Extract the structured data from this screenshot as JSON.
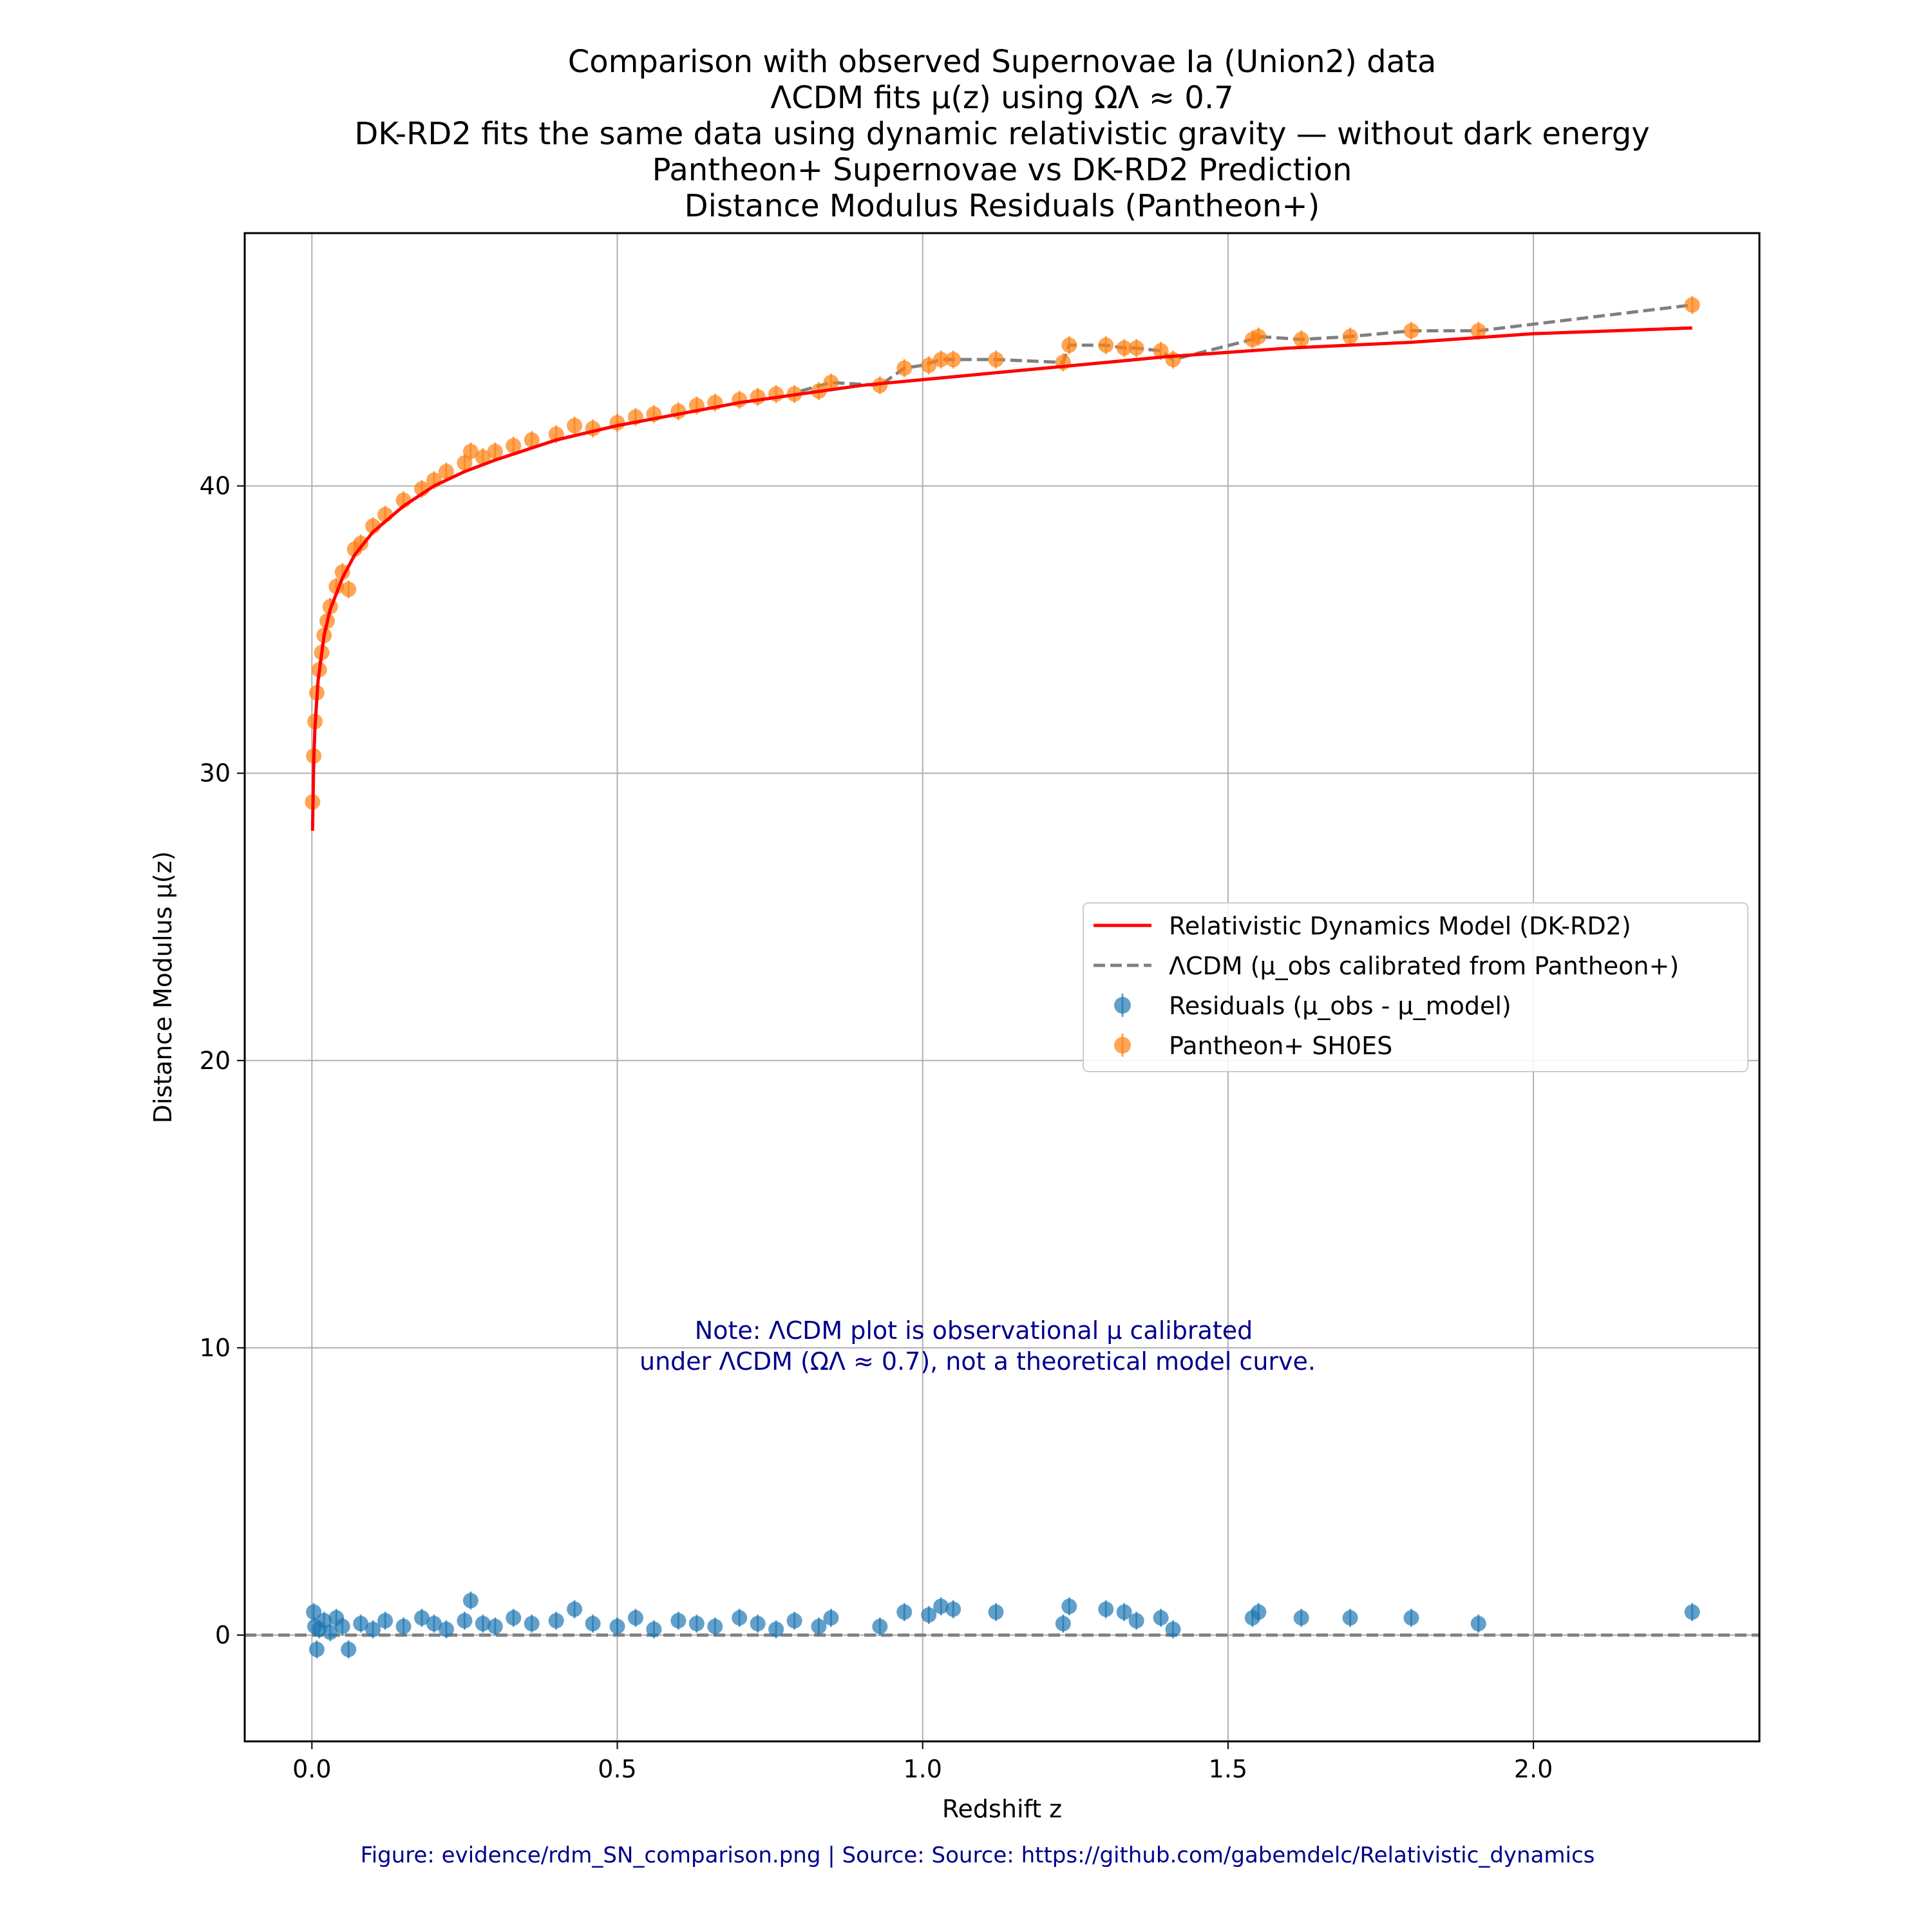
{
  "chart_data": {
    "type": "scatter",
    "title_lines": [
      "Comparison with observed Supernovae Ia (Union2) data",
      "ΛCDM fits μ(z) using ΩΛ ≈ 0.7",
      "DK-RD2 fits the same data using dynamic relativistic gravity — without dark energy",
      "Pantheon+ Supernovae vs DK-RD2 Prediction",
      "Distance Modulus Residuals (Pantheon+)"
    ],
    "xlabel": "Redshift z",
    "ylabel": "Distance Modulus μ(z)",
    "xlim": [
      -0.11,
      2.37
    ],
    "ylim": [
      -3.7,
      48.8
    ],
    "xticks": [
      0.0,
      0.5,
      1.0,
      1.5,
      2.0
    ],
    "xtick_labels": [
      "0.0",
      "0.5",
      "1.0",
      "1.5",
      "2.0"
    ],
    "yticks": [
      0,
      10,
      20,
      30,
      40
    ],
    "ytick_labels": [
      "0",
      "10",
      "20",
      "30",
      "40"
    ],
    "grid": true,
    "legend_position": "center-right",
    "legend": [
      "Relativistic Dynamics Model (DK-RD2)",
      "ΛCDM (μ_obs calibrated from Pantheon+)",
      "Residuals (μ_obs - μ_model)",
      "Pantheon+ SH0ES"
    ],
    "colors": {
      "model": "#ff0000",
      "lcdm": "#808080",
      "residuals": "#1f77b4",
      "pantheon": "#ff7f0e"
    },
    "series": [
      {
        "name": "Relativistic Dynamics Model (DK-RD2)",
        "kind": "line",
        "x": [
          0.001,
          0.003,
          0.005,
          0.01,
          0.02,
          0.03,
          0.05,
          0.07,
          0.1,
          0.15,
          0.2,
          0.25,
          0.3,
          0.4,
          0.5,
          0.6,
          0.7,
          0.8,
          0.9,
          1.0,
          1.2,
          1.4,
          1.6,
          1.8,
          2.0,
          2.26
        ],
        "y": [
          28.0,
          30.4,
          31.6,
          33.2,
          34.8,
          35.7,
          36.8,
          37.6,
          38.4,
          39.3,
          40.0,
          40.5,
          40.9,
          41.6,
          42.1,
          42.5,
          42.9,
          43.2,
          43.5,
          43.7,
          44.1,
          44.5,
          44.8,
          45.0,
          45.3,
          45.5
        ]
      },
      {
        "name": "ΛCDM (μ_obs calibrated from Pantheon+)",
        "kind": "dashed-line",
        "x": [
          0.8,
          0.85,
          0.93,
          0.97,
          1.0,
          1.03,
          1.05,
          1.12,
          1.23,
          1.24,
          1.3,
          1.33,
          1.35,
          1.39,
          1.41,
          1.54,
          1.55,
          1.62,
          1.7,
          1.8,
          1.91,
          2.26
        ],
        "y": [
          43.3,
          43.6,
          43.5,
          44.1,
          44.2,
          44.4,
          44.4,
          44.4,
          44.3,
          44.9,
          44.9,
          44.8,
          44.8,
          44.7,
          44.4,
          45.1,
          45.2,
          45.1,
          45.2,
          45.4,
          45.4,
          46.3
        ]
      },
      {
        "name": "Residuals (μ_obs - μ_model)",
        "kind": "scatter-errorbar",
        "x": [
          0.003,
          0.005,
          0.008,
          0.012,
          0.02,
          0.03,
          0.04,
          0.05,
          0.06,
          0.08,
          0.1,
          0.12,
          0.15,
          0.18,
          0.2,
          0.22,
          0.25,
          0.26,
          0.28,
          0.3,
          0.33,
          0.36,
          0.4,
          0.43,
          0.46,
          0.5,
          0.53,
          0.56,
          0.6,
          0.63,
          0.66,
          0.7,
          0.73,
          0.76,
          0.79,
          0.83,
          0.85,
          0.93,
          0.97,
          1.01,
          1.03,
          1.05,
          1.12,
          1.23,
          1.24,
          1.3,
          1.33,
          1.35,
          1.39,
          1.41,
          1.54,
          1.55,
          1.62,
          1.7,
          1.8,
          1.91,
          2.26
        ],
        "y": [
          0.8,
          0.3,
          -0.5,
          0.2,
          0.5,
          0.1,
          0.6,
          0.3,
          -0.5,
          0.4,
          0.2,
          0.5,
          0.3,
          0.6,
          0.4,
          0.2,
          0.5,
          1.2,
          0.4,
          0.3,
          0.6,
          0.4,
          0.5,
          0.9,
          0.4,
          0.3,
          0.6,
          0.2,
          0.5,
          0.4,
          0.3,
          0.6,
          0.4,
          0.2,
          0.5,
          0.3,
          0.6,
          0.3,
          0.8,
          0.7,
          1.0,
          0.9,
          0.8,
          0.4,
          1.0,
          0.9,
          0.8,
          0.5,
          0.6,
          0.2,
          0.6,
          0.8,
          0.6,
          0.6,
          0.6,
          0.4,
          0.8
        ]
      },
      {
        "name": "Pantheon+ SH0ES",
        "kind": "scatter-errorbar",
        "x": [
          0.001,
          0.003,
          0.005,
          0.008,
          0.012,
          0.016,
          0.02,
          0.025,
          0.03,
          0.04,
          0.05,
          0.06,
          0.07,
          0.08,
          0.1,
          0.12,
          0.15,
          0.18,
          0.2,
          0.22,
          0.25,
          0.26,
          0.28,
          0.3,
          0.33,
          0.36,
          0.4,
          0.43,
          0.46,
          0.5,
          0.53,
          0.56,
          0.6,
          0.63,
          0.66,
          0.7,
          0.73,
          0.76,
          0.79,
          0.83,
          0.85,
          0.93,
          0.97,
          1.01,
          1.03,
          1.05,
          1.12,
          1.23,
          1.24,
          1.3,
          1.33,
          1.35,
          1.39,
          1.41,
          1.54,
          1.55,
          1.62,
          1.7,
          1.8,
          1.91,
          2.26
        ],
        "y": [
          29.0,
          30.6,
          31.8,
          32.8,
          33.6,
          34.2,
          34.8,
          35.3,
          35.8,
          36.5,
          37.0,
          36.4,
          37.8,
          38.0,
          38.6,
          39.0,
          39.5,
          39.9,
          40.2,
          40.5,
          40.8,
          41.2,
          41.0,
          41.2,
          41.4,
          41.6,
          41.8,
          42.1,
          42.0,
          42.2,
          42.4,
          42.5,
          42.6,
          42.8,
          42.9,
          43.0,
          43.1,
          43.2,
          43.2,
          43.3,
          43.6,
          43.5,
          44.1,
          44.2,
          44.4,
          44.4,
          44.4,
          44.3,
          44.9,
          44.9,
          44.8,
          44.8,
          44.7,
          44.4,
          45.1,
          45.2,
          45.1,
          45.2,
          45.4,
          45.4,
          46.3
        ]
      }
    ],
    "reference_line": {
      "y": 0,
      "style": "dashed",
      "color": "#808080"
    },
    "annotation": [
      "Note: ΛCDM plot is observational μ calibrated",
      "under ΛCDM (ΩΛ ≈ 0.7), not a theoretical model curve."
    ]
  },
  "footer": "Figure: evidence/rdm_SN_comparison.png  | Source:  Source: https://github.com/gabemdelc/Relativistic_dynamics"
}
